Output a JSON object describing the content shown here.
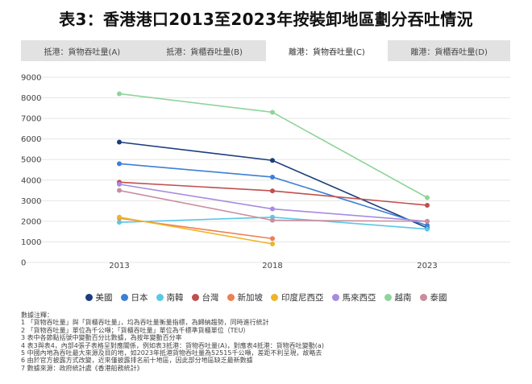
{
  "title": "表3：香港港口2013至2023年按裝卸地區劃分吞吐情況",
  "tabs": [
    {
      "label": "抵港：貨物吞吐量(A)",
      "active": false
    },
    {
      "label": "抵港：貨櫃吞吐量(B)",
      "active": false
    },
    {
      "label": "離港：貨物吞吐量(C)",
      "active": true
    },
    {
      "label": "離港：貨櫃吞吐量(D)",
      "active": false
    }
  ],
  "chart_data": {
    "type": "line",
    "x": [
      "2013",
      "2018",
      "2023"
    ],
    "ylim": [
      0,
      9000
    ],
    "yticks": [
      0,
      1000,
      2000,
      3000,
      4000,
      5000,
      6000,
      7000,
      8000,
      9000
    ],
    "grid": true,
    "legend_position": "bottom",
    "series": [
      {
        "name": "美國",
        "color": "#1b3d7c",
        "values": [
          5850,
          4960,
          1680
        ]
      },
      {
        "name": "日本",
        "color": "#3d7fd6",
        "values": [
          4800,
          4150,
          1800
        ]
      },
      {
        "name": "南韓",
        "color": "#5bc8e6",
        "values": [
          1950,
          2200,
          1620
        ]
      },
      {
        "name": "台灣",
        "color": "#c0504d",
        "values": [
          3900,
          3480,
          2780
        ]
      },
      {
        "name": "新加坡",
        "color": "#ef7f4f",
        "values": [
          2150,
          1160,
          null
        ]
      },
      {
        "name": "印度尼西亞",
        "color": "#f0b429",
        "values": [
          2200,
          900,
          null
        ]
      },
      {
        "name": "馬來西亞",
        "color": "#a68be0",
        "values": [
          3800,
          2600,
          2000
        ]
      },
      {
        "name": "越南",
        "color": "#8fd49a",
        "values": [
          8200,
          7300,
          3150
        ]
      },
      {
        "name": "泰國",
        "color": "#c98e9e",
        "values": [
          3500,
          2050,
          2000
        ]
      }
    ]
  },
  "notes": [
    "數據注釋：",
    "1 「貨物吞吐量」與「貨櫃吞吐量」，均為吞吐量衡量指標，為歸納趨勢，同時進行統計",
    "2 「貨物吞吐量」單位為千公噸；「貨櫃吞吐量」單位為千標準貨櫃單位（TEU）",
    "3 表中各節點括號中變動百分比數據，為按年變動百分率",
    "4 表3與表4，內部4張子表格呈對應關係，例如表3抵港：貨物吞吐量(A)，對應表4抵港：貨物吞吐變動(a)",
    "5 中國內地為吞吐最大來源及目的地，如2023年抵港貨物吞吐量為52515千公噸，差距不利呈現，故略去",
    "6 由於官方披露方式改變，近來僅披露排名前十地區，因此部分地區缺乏最新數據",
    "7 數據來源：政府統計處《香港船務統計》"
  ]
}
